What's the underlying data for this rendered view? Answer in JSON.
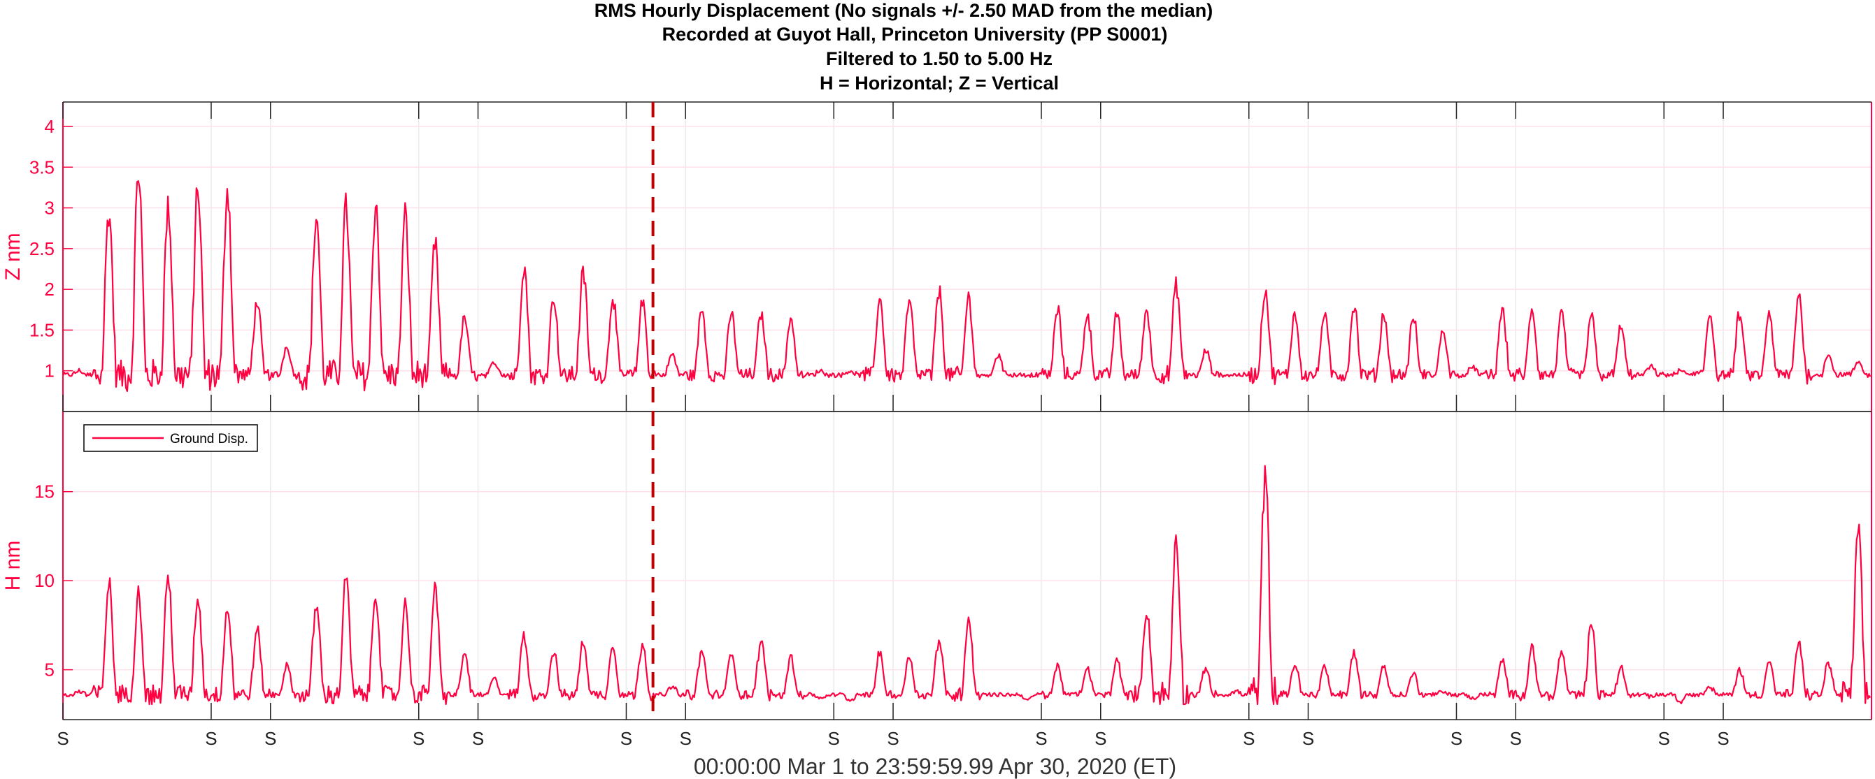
{
  "chart_data": {
    "type": "line",
    "title_lines": [
      "RMS Hourly Displacement  (No signals +/- 2.50 MAD from the median)",
      "Recorded at Guyot Hall, Princeton University (PP S0001)",
      "Filtered to 1.50 to 5.00 Hz",
      "H = Horizontal; Z = Vertical"
    ],
    "xlabel": "00:00:00 Mar 1 to 23:59:59.99 Apr 30, 2020 (ET)",
    "x_range_days": [
      0,
      61
    ],
    "weekend_marker_label": "S",
    "weekend_markers_days": [
      0,
      5,
      7,
      12,
      14,
      19,
      21,
      26,
      28,
      33,
      35,
      40,
      42,
      47,
      49,
      54,
      56
    ],
    "event_line_day": 19.9,
    "legend": {
      "label": "Ground Disp.",
      "position": "top-left of lower panel"
    },
    "colors": {
      "series": "#ff0040",
      "event_line": "#c00000",
      "grid": "#eaeaea",
      "minor_grid": "#ffe0e8",
      "frame": "#222222"
    },
    "panels": [
      {
        "id": "Z",
        "ylabel": "Z nm",
        "ylim": [
          0.5,
          4.3
        ],
        "yticks": [
          1,
          1.5,
          2,
          2.5,
          3,
          3.5,
          4
        ],
        "ytick_labels": [
          "1",
          "1.5",
          "2",
          "2.5",
          "3",
          "3.5",
          "4"
        ],
        "series": {
          "name": "Ground Disp.",
          "baseline": 0.95,
          "daily_peaks": [
            1.0,
            2.95,
            3.45,
            3.0,
            3.25,
            3.25,
            1.85,
            1.3,
            2.9,
            3.02,
            3.05,
            2.9,
            2.55,
            1.65,
            1.1,
            2.3,
            1.9,
            2.2,
            1.9,
            1.85,
            1.2,
            1.75,
            1.7,
            1.7,
            1.65,
            1.0,
            1.0,
            1.88,
            1.85,
            1.98,
            1.9,
            1.2,
            0.95,
            1.75,
            1.7,
            1.7,
            1.75,
            2.05,
            1.25,
            0.95,
            2.0,
            1.7,
            1.7,
            1.8,
            1.7,
            1.65,
            1.5,
            1.05,
            1.75,
            1.75,
            1.7,
            1.7,
            1.55,
            1.05,
            1.0,
            1.7,
            1.7,
            1.7,
            1.95,
            1.2,
            1.1
          ]
        }
      },
      {
        "id": "H",
        "ylabel": "H nm",
        "ylim": [
          2.2,
          19.5
        ],
        "yticks": [
          5,
          10,
          15
        ],
        "ytick_labels": [
          "5",
          "10",
          "15"
        ],
        "series": {
          "name": "Ground Disp.",
          "baseline": 3.6,
          "daily_peaks": [
            3.8,
            9.8,
            9.3,
            10.1,
            9.0,
            8.4,
            7.2,
            5.2,
            8.6,
            10.0,
            9.3,
            8.6,
            9.5,
            5.9,
            4.5,
            6.9,
            6.0,
            6.6,
            6.3,
            6.5,
            4.1,
            6.0,
            6.0,
            6.6,
            5.7,
            3.4,
            3.3,
            5.9,
            5.8,
            6.7,
            7.9,
            3.6,
            3.3,
            5.2,
            5.1,
            5.6,
            8.3,
            12.4,
            5.1,
            3.8,
            15.7,
            5.3,
            5.2,
            6.0,
            5.2,
            4.8,
            3.8,
            3.4,
            5.5,
            6.3,
            6.0,
            7.5,
            5.1,
            3.5,
            3.2,
            4.0,
            5.0,
            5.5,
            6.4,
            5.4,
            12.6
          ]
        }
      }
    ]
  }
}
